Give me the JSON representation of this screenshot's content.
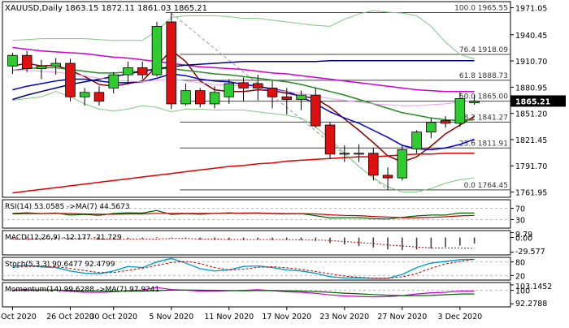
{
  "chart_data": {
    "type": "candlestick",
    "symbol": "XAUUSD,Daily",
    "ohlc_readout": "1863.15 1872.11 1861.03 1865.21",
    "last_price": 1865.21,
    "last_price_label": "1865.21",
    "price_range": [
      1756,
      1978
    ],
    "price_ticks": [
      {
        "v": 1971.05,
        "label": "1971.05"
      },
      {
        "v": 1940.45,
        "label": "1940.45"
      },
      {
        "v": 1910.7,
        "label": "1910.70"
      },
      {
        "v": 1880.95,
        "label": "1880.95"
      },
      {
        "v": 1851.2,
        "label": "1851.20"
      },
      {
        "v": 1821.45,
        "label": "1821.45"
      },
      {
        "v": 1791.7,
        "label": "1791.70"
      },
      {
        "v": 1761.95,
        "label": "1761.95"
      }
    ],
    "x_labels": [
      "20 Oct 2020",
      "26 Oct 2020",
      "30 Oct 2020",
      "5 Nov 2020",
      "11 Nov 2020",
      "17 Nov 2020",
      "23 Nov 2020",
      "27 Nov 2020",
      "3 Dec 2020"
    ],
    "x_label_bars": [
      0,
      4,
      7,
      11,
      15,
      19,
      23,
      27,
      31
    ],
    "fib_levels": [
      {
        "v": 1965.55,
        "label": "100.0 1965.55"
      },
      {
        "v": 1918.09,
        "label": "76.4 1918.09"
      },
      {
        "v": 1888.73,
        "label": "61.8 1888.73"
      },
      {
        "v": 1865.0,
        "label": "50.0 1865.00"
      },
      {
        "v": 1841.27,
        "label": "38.2 1841.27"
      },
      {
        "v": 1811.91,
        "label": "23.6 1811.91"
      },
      {
        "v": 1764.45,
        "label": "0.0 1764.45"
      }
    ],
    "candles": [
      {
        "o": 1905,
        "h": 1920,
        "l": 1896,
        "c": 1917
      },
      {
        "o": 1917,
        "h": 1922,
        "l": 1898,
        "c": 1902
      },
      {
        "o": 1902,
        "h": 1912,
        "l": 1890,
        "c": 1905
      },
      {
        "o": 1905,
        "h": 1914,
        "l": 1895,
        "c": 1908
      },
      {
        "o": 1908,
        "h": 1913,
        "l": 1865,
        "c": 1870
      },
      {
        "o": 1870,
        "h": 1880,
        "l": 1860,
        "c": 1875
      },
      {
        "o": 1875,
        "h": 1882,
        "l": 1860,
        "c": 1865
      },
      {
        "o": 1880,
        "h": 1898,
        "l": 1874,
        "c": 1895
      },
      {
        "o": 1895,
        "h": 1910,
        "l": 1884,
        "c": 1903
      },
      {
        "o": 1903,
        "h": 1910,
        "l": 1890,
        "c": 1895
      },
      {
        "o": 1895,
        "h": 1955,
        "l": 1893,
        "c": 1950
      },
      {
        "o": 1955,
        "h": 1965,
        "l": 1856,
        "c": 1862
      },
      {
        "o": 1862,
        "h": 1885,
        "l": 1860,
        "c": 1877
      },
      {
        "o": 1877,
        "h": 1880,
        "l": 1858,
        "c": 1862
      },
      {
        "o": 1862,
        "h": 1882,
        "l": 1857,
        "c": 1875
      },
      {
        "o": 1870,
        "h": 1890,
        "l": 1862,
        "c": 1885
      },
      {
        "o": 1886,
        "h": 1892,
        "l": 1865,
        "c": 1880
      },
      {
        "o": 1885,
        "h": 1895,
        "l": 1866,
        "c": 1880
      },
      {
        "o": 1880,
        "h": 1888,
        "l": 1857,
        "c": 1870
      },
      {
        "o": 1870,
        "h": 1880,
        "l": 1850,
        "c": 1867
      },
      {
        "o": 1867,
        "h": 1877,
        "l": 1855,
        "c": 1872
      },
      {
        "o": 1872,
        "h": 1880,
        "l": 1835,
        "c": 1837
      },
      {
        "o": 1838,
        "h": 1841,
        "l": 1800,
        "c": 1805
      },
      {
        "o": 1805,
        "h": 1815,
        "l": 1796,
        "c": 1806
      },
      {
        "o": 1806,
        "h": 1816,
        "l": 1796,
        "c": 1806
      },
      {
        "o": 1806,
        "h": 1812,
        "l": 1775,
        "c": 1781
      },
      {
        "o": 1781,
        "h": 1790,
        "l": 1764,
        "c": 1778
      },
      {
        "o": 1778,
        "h": 1815,
        "l": 1775,
        "c": 1810
      },
      {
        "o": 1811,
        "h": 1832,
        "l": 1806,
        "c": 1830
      },
      {
        "o": 1830,
        "h": 1846,
        "l": 1823,
        "c": 1841
      },
      {
        "o": 1843,
        "h": 1848,
        "l": 1835,
        "c": 1840
      },
      {
        "o": 1840,
        "h": 1875,
        "l": 1836,
        "c": 1868
      },
      {
        "o": 1863.15,
        "h": 1872.11,
        "l": 1861.03,
        "c": 1865.21
      }
    ],
    "overlays": [
      {
        "color": "#8b0000",
        "values": [
          1905,
          1908,
          1905,
          1906,
          1900,
          1893,
          1884,
          1882,
          1885,
          1888,
          1905,
          1923,
          1910,
          1888,
          1878,
          1876,
          1876,
          1878,
          1877,
          1874,
          1871,
          1868,
          1858,
          1845,
          1832,
          1818,
          1803,
          1796,
          1802,
          1814,
          1828,
          1838,
          1848
        ]
      },
      {
        "color": "#0000cd",
        "values": [
          1878,
          1882,
          1885,
          1888,
          1890,
          1890,
          1888,
          1886,
          1886,
          1887,
          1891,
          1896,
          1894,
          1890,
          1888,
          1887,
          1884,
          1882,
          1879,
          1876,
          1870,
          1862,
          1853,
          1846,
          1840,
          1832,
          1824,
          1815,
          1811,
          1810,
          1812,
          1816,
          1822
        ]
      },
      {
        "color": "#228b22",
        "values": [
          1900,
          1902,
          1903,
          1903,
          1901,
          1899,
          1897,
          1897,
          1898,
          1899,
          1902,
          1902,
          1900,
          1898,
          1896,
          1895,
          1893,
          1891,
          1889,
          1887,
          1884,
          1880,
          1876,
          1872,
          1867,
          1862,
          1857,
          1852,
          1849,
          1846,
          1844,
          1843,
          1844
        ]
      },
      {
        "color": "#cc00cc",
        "values": [
          1926,
          1924,
          1922,
          1921,
          1920,
          1919,
          1917,
          1915,
          1914,
          1912,
          1910,
          1908,
          1906,
          1904,
          1903,
          1902,
          1901,
          1899,
          1897,
          1896,
          1894,
          1892,
          1890,
          1888,
          1886,
          1884,
          1882,
          1880,
          1878,
          1877,
          1876,
          1876,
          1876
        ]
      },
      {
        "color": "#000080",
        "values": [
          1867,
          1872,
          1876,
          1880,
          1884,
          1887,
          1890,
          1893,
          1896,
          1899,
          1902,
          1904,
          1906,
          1907,
          1908,
          1909,
          1910,
          1910,
          1910,
          1910,
          1910,
          1910,
          1911,
          1911,
          1911,
          1911,
          1911,
          1911,
          1911,
          1911,
          1911,
          1911,
          1911
        ]
      },
      {
        "color": "#dd0000",
        "values": [
          1761,
          1763,
          1765,
          1767,
          1769,
          1771,
          1773,
          1775,
          1777,
          1779,
          1781,
          1783,
          1785,
          1787,
          1789,
          1791,
          1792,
          1794,
          1795,
          1797,
          1798,
          1799,
          1800,
          1801,
          1802,
          1802,
          1803,
          1804,
          1805,
          1805,
          1806,
          1806,
          1806
        ]
      },
      {
        "color": "#80c880",
        "values": [
          1934,
          1935,
          1936,
          1936,
          1936,
          1936,
          1935,
          1934,
          1934,
          1934,
          1945,
          1960,
          1962,
          1962,
          1962,
          1961,
          1959,
          1959,
          1957,
          1955,
          1953,
          1951,
          1950,
          1958,
          1964,
          1968,
          1966,
          1965,
          1962,
          1950,
          1932,
          1918,
          1913
        ]
      },
      {
        "color": "#80c880",
        "values": [
          1866,
          1868,
          1870,
          1876,
          1870,
          1862,
          1856,
          1854,
          1856,
          1860,
          1858,
          1853,
          1856,
          1856,
          1855,
          1855,
          1855,
          1853,
          1851,
          1849,
          1846,
          1836,
          1822,
          1806,
          1791,
          1778,
          1768,
          1762,
          1762,
          1766,
          1772,
          1776,
          1778
        ]
      },
      {
        "color": "#e8a0e8",
        "values": [
          1900,
          1900,
          1899,
          1898,
          1896,
          1894,
          1891,
          1889,
          1888,
          1887,
          1889,
          1890,
          1888,
          1886,
          1884,
          1883,
          1882,
          1880,
          1878,
          1876,
          1874,
          1871,
          1868,
          1866,
          1864,
          1862,
          1861,
          1860,
          1860,
          1861,
          1862,
          1864,
          1866
        ]
      }
    ],
    "trendline": {
      "from": {
        "bar": 11,
        "v": 1965
      },
      "to": {
        "bar": 26,
        "v": 1764.45
      }
    },
    "rsi": {
      "label": "RSI(14) 53.0585 ->MA(7) 44.5673",
      "range": [
        0,
        100
      ],
      "ticks": [
        {
          "v": 70,
          "label": "70"
        },
        {
          "v": 30,
          "label": "30"
        }
      ],
      "rsi": [
        52,
        54,
        51,
        53,
        46,
        48,
        45,
        52,
        54,
        53,
        62,
        48,
        51,
        49,
        52,
        54,
        52,
        53,
        51,
        50,
        51,
        44,
        36,
        37,
        37,
        33,
        32,
        38,
        43,
        46,
        46,
        53,
        53
      ],
      "ma": [
        50,
        51,
        51,
        52,
        51,
        50,
        49,
        49,
        50,
        50,
        52,
        52,
        52,
        52,
        52,
        52,
        53,
        53,
        52,
        51,
        51,
        50,
        47,
        45,
        44,
        41,
        39,
        37,
        37,
        38,
        40,
        43,
        45
      ]
    },
    "macd": {
      "label": "MACD(12,26,9) -12.177 -21.729",
      "range": [
        -35,
        14
      ],
      "ticks": [
        {
          "v": 9.79,
          "label": "9.79"
        },
        {
          "v": 0,
          "label": "0.00"
        },
        {
          "v": -29.577,
          "label": "-29.577"
        }
      ],
      "hist": [
        -2,
        -1,
        -1,
        0,
        -2,
        -3,
        -4,
        -4,
        -3,
        -3,
        1,
        -1,
        -2,
        -4,
        -5,
        -5,
        -5,
        -4,
        -5,
        -5,
        -5,
        -7,
        -11,
        -14,
        -17,
        -20,
        -24,
        -25,
        -24,
        -22,
        -19,
        -16,
        -12
      ],
      "signal": [
        -3,
        -3,
        -2,
        -2,
        -2,
        -2,
        -3,
        -3,
        -3,
        -3,
        -3,
        -2,
        -2,
        -3,
        -3,
        -4,
        -4,
        -4,
        -4,
        -4,
        -5,
        -5,
        -6,
        -8,
        -10,
        -12,
        -15,
        -17,
        -19,
        -21,
        -21,
        -21,
        -21.7
      ]
    },
    "stoch": {
      "label": "Stoch(5,3,3) 90.6477 92.4799",
      "range": [
        0,
        100
      ],
      "ticks": [
        {
          "v": 80,
          "label": "80"
        },
        {
          "v": 20,
          "label": "20"
        }
      ],
      "k": [
        60,
        65,
        58,
        55,
        40,
        30,
        28,
        40,
        60,
        55,
        80,
        95,
        75,
        50,
        40,
        45,
        60,
        62,
        55,
        45,
        40,
        30,
        15,
        10,
        10,
        8,
        8,
        25,
        55,
        75,
        82,
        90,
        90.6
      ],
      "d": [
        55,
        60,
        61,
        59,
        51,
        42,
        33,
        33,
        43,
        52,
        65,
        77,
        83,
        73,
        55,
        45,
        48,
        56,
        59,
        54,
        47,
        38,
        28,
        18,
        12,
        9,
        9,
        14,
        29,
        52,
        71,
        82,
        92.5
      ]
    },
    "momentum": {
      "label": "Momentum(14) 99.6288 ->MA(7) 97.9241",
      "range": [
        90.5,
        104.5
      ],
      "ticks": [
        {
          "v": 103.1452,
          "label": "103.1452"
        },
        {
          "v": 100,
          "label": "100"
        },
        {
          "v": 92.2788,
          "label": "92.2788"
        }
      ],
      "mom": [
        100.2,
        100.4,
        100.2,
        100.1,
        99.4,
        98.9,
        98.8,
        99.2,
        99.9,
        100.2,
        101.6,
        100.5,
        100.1,
        99.6,
        99.5,
        99.8,
        100.0,
        100.4,
        99.8,
        99.2,
        98.9,
        98.3,
        97.4,
        96.8,
        96.5,
        96.3,
        96.4,
        97.0,
        97.9,
        98.6,
        98.9,
        99.6,
        99.6
      ],
      "ma": [
        100.0,
        100.1,
        100.2,
        100.2,
        100.0,
        99.8,
        99.6,
        99.5,
        99.5,
        99.6,
        99.9,
        100.1,
        100.2,
        100.1,
        100.0,
        99.9,
        99.8,
        99.9,
        99.9,
        99.8,
        99.6,
        99.3,
        98.9,
        98.4,
        98.0,
        97.6,
        97.2,
        97.0,
        97.0,
        97.1,
        97.5,
        97.9,
        97.9
      ]
    }
  }
}
